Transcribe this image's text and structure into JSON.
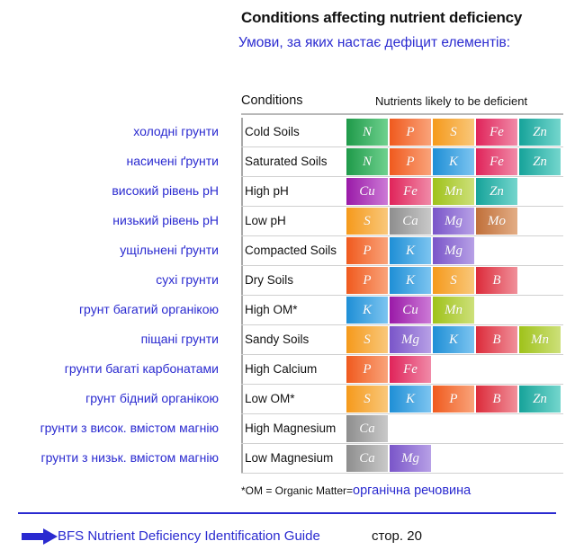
{
  "title": "Conditions affecting nutrient deficiency",
  "subtitle": "Умови, за яких настає дефіцит елементів:",
  "table": {
    "col_conditions": "Conditions",
    "col_nutrients": "Nutrients likely to be deficient",
    "rows": [
      {
        "ukr": "холодні грунти",
        "condition": "Cold Soils",
        "nutrients": [
          "N",
          "P",
          "S",
          "Fe",
          "Zn"
        ]
      },
      {
        "ukr": "насичені ґрунти",
        "condition": "Saturated Soils",
        "nutrients": [
          "N",
          "P",
          "K",
          "Fe",
          "Zn"
        ]
      },
      {
        "ukr": "високий рівень pH",
        "condition": "High pH",
        "nutrients": [
          "Cu",
          "Fe",
          "Mn",
          "Zn"
        ]
      },
      {
        "ukr": "низький рівень pH",
        "condition": "Low pH",
        "nutrients": [
          "S",
          "Ca",
          "Mg",
          "Mo"
        ]
      },
      {
        "ukr": "ущільнені ґрунти",
        "condition": "Compacted Soils",
        "nutrients": [
          "P",
          "K",
          "Mg"
        ]
      },
      {
        "ukr": "сухі  грунти",
        "condition": "Dry Soils",
        "nutrients": [
          "P",
          "K",
          "S",
          "B"
        ]
      },
      {
        "ukr": "грунт багатий органікою",
        "condition": "High OM*",
        "nutrients": [
          "K",
          "Cu",
          "Mn"
        ]
      },
      {
        "ukr": "піщані грунти",
        "condition": "Sandy Soils",
        "nutrients": [
          "S",
          "Mg",
          "K",
          "B",
          "Mn"
        ]
      },
      {
        "ukr": "грунти багаті карбонатами",
        "condition": "High Calcium",
        "nutrients": [
          "P",
          "Fe"
        ]
      },
      {
        "ukr": "грунт бідний  органікою",
        "condition": "Low OM*",
        "nutrients": [
          "S",
          "K",
          "P",
          "B",
          "Zn"
        ]
      },
      {
        "ukr": "грунти з висок. вмістом магнію",
        "condition": "High Magnesium",
        "nutrients": [
          "Ca"
        ]
      },
      {
        "ukr": "грунти з низьк. вмістом магнію",
        "condition": "Low Magnesium",
        "nutrients": [
          "Ca",
          "Mg"
        ]
      }
    ]
  },
  "nutrient_colors": {
    "N": [
      "#1f9a4a",
      "#6fd18e"
    ],
    "P": [
      "#f05a1e",
      "#f9a37a"
    ],
    "S": [
      "#f59a1c",
      "#f9c77a"
    ],
    "Fe": [
      "#e0245a",
      "#f08aa8"
    ],
    "Zn": [
      "#16a39a",
      "#74d6cd"
    ],
    "K": [
      "#1f8fd6",
      "#7cc4f0"
    ],
    "Cu": [
      "#9a1aa8",
      "#cc7ad6"
    ],
    "Mn": [
      "#9fc21a",
      "#cde07a"
    ],
    "Ca": [
      "#8e8e8e",
      "#c9c9c9"
    ],
    "Mg": [
      "#7a55c9",
      "#b7a0e6"
    ],
    "Mo": [
      "#c0703a",
      "#e3ad85"
    ],
    "B": [
      "#dc2b3a",
      "#f0909a"
    ]
  },
  "footnote_prefix": "*OM = Organic Matter=",
  "footnote_ua": "органічна речовина",
  "guide": "BFS Nutrient Deficiency Identification Guide",
  "page": "стор. 20",
  "icons": {
    "arrow": "right-arrow-icon"
  }
}
